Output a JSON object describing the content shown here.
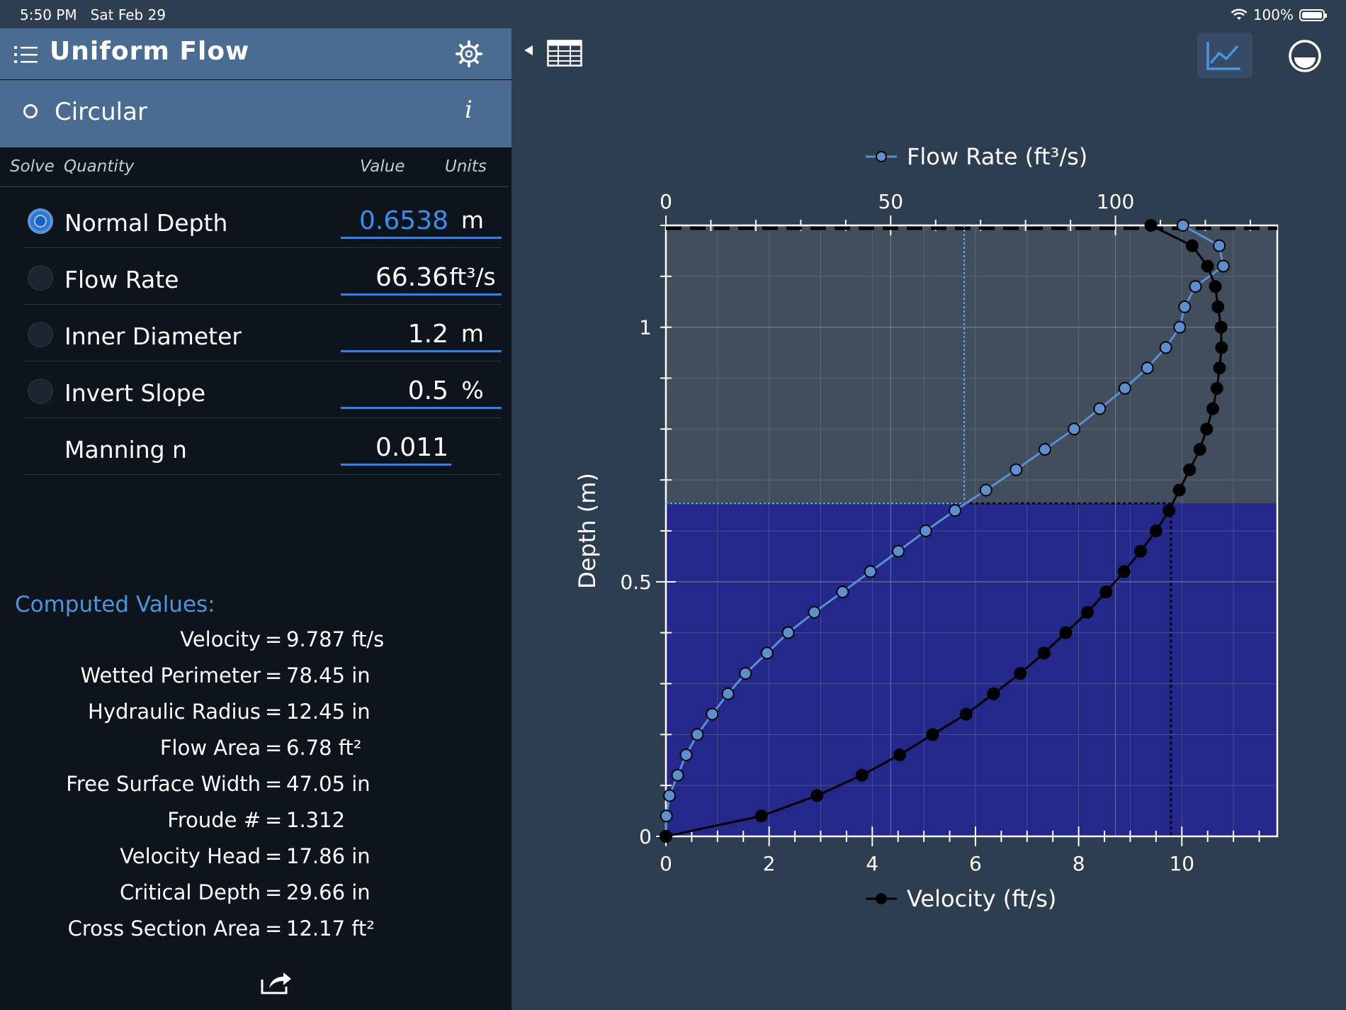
{
  "status_bar": {
    "time": "5:50 PM",
    "date": "Sat Feb 29",
    "battery": "100%"
  },
  "header": {
    "title": "Uniform Flow",
    "icons": [
      "list-icon",
      "gear-icon"
    ]
  },
  "section": {
    "label": "Circular",
    "info": "i"
  },
  "columns": {
    "solve": "Solve",
    "quantity": "Quantity",
    "value": "Value",
    "units": "Units"
  },
  "rows": [
    {
      "label": "Normal Depth",
      "value": "0.6538",
      "unit": "m",
      "selected": true
    },
    {
      "label": "Flow Rate",
      "value": "66.36",
      "unit": "ft³/s",
      "selected": false
    },
    {
      "label": "Inner Diameter",
      "value": "1.2",
      "unit": "m",
      "selected": false
    },
    {
      "label": "Invert Slope",
      "value": "0.5",
      "unit": "%",
      "selected": false
    },
    {
      "label": "Manning n",
      "value": "0.011",
      "unit": "",
      "selected": false
    }
  ],
  "computed": {
    "title": "Computed Values:",
    "items": [
      {
        "label": "Velocity",
        "value": "9.787 ft/s"
      },
      {
        "label": "Wetted Perimeter",
        "value": "78.45 in"
      },
      {
        "label": "Hydraulic Radius",
        "value": "12.45 in"
      },
      {
        "label": "Flow Area",
        "value": "6.78 ft²"
      },
      {
        "label": "Free Surface Width",
        "value": "47.05 in"
      },
      {
        "label": "Froude #",
        "value": "1.312"
      },
      {
        "label": "Velocity Head",
        "value": "17.86 in"
      },
      {
        "label": "Critical Depth",
        "value": "29.66 in"
      },
      {
        "label": "Cross Section Area",
        "value": "12.17 ft²"
      }
    ]
  },
  "toolbar": {
    "icons": [
      "collapse-arrow-icon",
      "table-icon",
      "chart-icon",
      "minus-circle-icon"
    ]
  },
  "colors": {
    "accent": "#4a6c92",
    "water": "#23288a",
    "flow_series": "#5b8fd0",
    "velocity_series": "#000000"
  },
  "chart_data": {
    "type": "line",
    "orientation": "horizontal",
    "ylabel": "Depth (m)",
    "ylim": [
      0,
      1.2
    ],
    "yticks": [
      "0",
      "0.5",
      "1"
    ],
    "normal_depth": 0.6538,
    "diameter": 1.2,
    "x_top": {
      "label": "Flow Rate (ft³/s)",
      "lim": [
        0,
        136
      ],
      "ticks": [
        "0",
        "50",
        "100"
      ]
    },
    "x_bottom": {
      "label": "Velocity (ft/s)",
      "lim": [
        0,
        11.85
      ],
      "ticks": [
        "0",
        "2",
        "4",
        "6",
        "8",
        "10"
      ]
    },
    "legend_placement": "top and bottom center",
    "grid": true,
    "series": [
      {
        "name": "Flow Rate (ft³/s)",
        "axis": "top",
        "points": [
          [
            0,
            0
          ],
          [
            0.1,
            0.04
          ],
          [
            0.8,
            0.08
          ],
          [
            2.6,
            0.12
          ],
          [
            4.5,
            0.16
          ],
          [
            7,
            0.2
          ],
          [
            10.3,
            0.24
          ],
          [
            13.8,
            0.28
          ],
          [
            17.7,
            0.32
          ],
          [
            22.5,
            0.36
          ],
          [
            27.2,
            0.4
          ],
          [
            33,
            0.44
          ],
          [
            39.3,
            0.48
          ],
          [
            45.5,
            0.52
          ],
          [
            51.7,
            0.56
          ],
          [
            57.8,
            0.6
          ],
          [
            64.3,
            0.64
          ],
          [
            71.2,
            0.68
          ],
          [
            77.9,
            0.72
          ],
          [
            84.3,
            0.76
          ],
          [
            90.8,
            0.8
          ],
          [
            96.5,
            0.84
          ],
          [
            102.1,
            0.88
          ],
          [
            107.1,
            0.92
          ],
          [
            111.2,
            0.96
          ],
          [
            114.3,
            1.0
          ],
          [
            115.4,
            1.04
          ],
          [
            117.8,
            1.08
          ],
          [
            124,
            1.12
          ],
          [
            123.1,
            1.16
          ],
          [
            115,
            1.2
          ]
        ]
      },
      {
        "name": "Velocity (ft/s)",
        "axis": "bottom",
        "points": [
          [
            0,
            0
          ],
          [
            1.85,
            0.04
          ],
          [
            2.93,
            0.08
          ],
          [
            3.8,
            0.12
          ],
          [
            4.53,
            0.16
          ],
          [
            5.17,
            0.2
          ],
          [
            5.82,
            0.24
          ],
          [
            6.35,
            0.28
          ],
          [
            6.87,
            0.32
          ],
          [
            7.33,
            0.36
          ],
          [
            7.75,
            0.4
          ],
          [
            8.17,
            0.44
          ],
          [
            8.53,
            0.48
          ],
          [
            8.88,
            0.52
          ],
          [
            9.2,
            0.56
          ],
          [
            9.5,
            0.6
          ],
          [
            9.75,
            0.64
          ],
          [
            9.95,
            0.68
          ],
          [
            10.15,
            0.72
          ],
          [
            10.35,
            0.76
          ],
          [
            10.48,
            0.8
          ],
          [
            10.6,
            0.84
          ],
          [
            10.68,
            0.88
          ],
          [
            10.73,
            0.92
          ],
          [
            10.77,
            0.96
          ],
          [
            10.76,
            1.0
          ],
          [
            10.7,
            1.04
          ],
          [
            10.65,
            1.08
          ],
          [
            10.5,
            1.12
          ],
          [
            10.2,
            1.16
          ],
          [
            9.4,
            1.2
          ]
        ]
      }
    ]
  }
}
